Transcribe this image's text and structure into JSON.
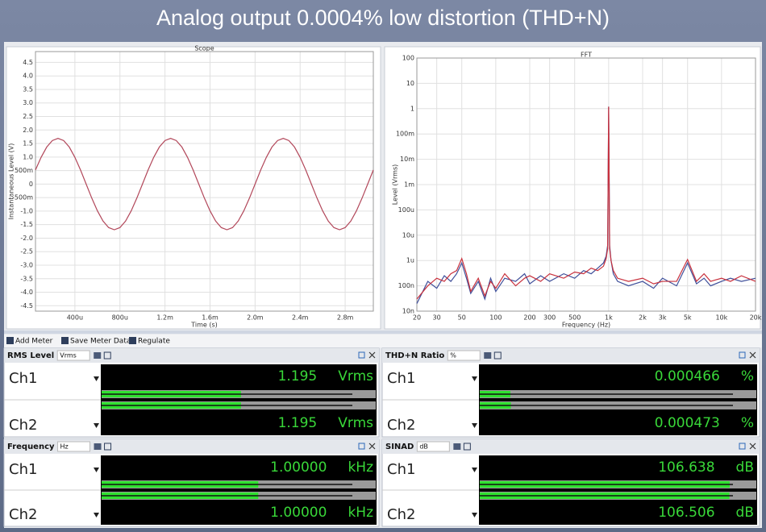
{
  "header": {
    "title": "Analog output 0.0004% low distortion (THD+N)"
  },
  "chart_data": [
    {
      "type": "line",
      "title": "Scope",
      "x_label": "Time (s)",
      "y_label": "Instantaneous Level (V)",
      "x": [
        5e-05,
        0.0001,
        0.00015,
        0.0002,
        0.00025,
        0.0003,
        0.00035,
        0.0004,
        0.00045,
        0.0005,
        0.00055,
        0.0006,
        0.00065,
        0.0007,
        0.00075,
        0.0008,
        0.00085,
        0.0009,
        0.00095,
        0.001,
        0.00105,
        0.0011,
        0.00115,
        0.0012,
        0.00125,
        0.0013,
        0.00135,
        0.0014,
        0.00145,
        0.0015,
        0.00155,
        0.0016,
        0.00165,
        0.0017,
        0.00175,
        0.0018,
        0.00185,
        0.0019,
        0.00195,
        0.002,
        0.00205,
        0.0021,
        0.00215,
        0.0022,
        0.00225,
        0.0023,
        0.00235,
        0.0024,
        0.00245,
        0.0025,
        0.00255,
        0.0026,
        0.00265,
        0.0027,
        0.00275,
        0.0028,
        0.00285,
        0.0029,
        0.00295,
        0.003,
        0.00305
      ],
      "series": [
        {
          "color": "#b2475a",
          "values": [
            0.52,
            0.99,
            1.37,
            1.61,
            1.69,
            1.61,
            1.37,
            0.99,
            0.52,
            0,
            -0.52,
            -0.99,
            -1.37,
            -1.61,
            -1.69,
            -1.61,
            -1.37,
            -0.99,
            -0.52,
            0,
            0.52,
            0.99,
            1.37,
            1.61,
            1.69,
            1.61,
            1.37,
            0.99,
            0.52,
            0,
            -0.52,
            -0.99,
            -1.37,
            -1.61,
            -1.69,
            -1.61,
            -1.37,
            -0.99,
            -0.52,
            0,
            0.52,
            0.99,
            1.37,
            1.61,
            1.69,
            1.61,
            1.37,
            0.99,
            0.52,
            0,
            -0.52,
            -0.99,
            -1.37,
            -1.61,
            -1.69,
            -1.61,
            -1.37,
            -0.99,
            -0.52,
            0,
            0.52
          ]
        }
      ],
      "xlim": [
        5e-05,
        0.00305
      ],
      "xticks": [
        {
          "value": 0.0004,
          "label": "400u"
        },
        {
          "value": 0.0008,
          "label": "800u"
        },
        {
          "value": 0.0012,
          "label": "1.2m"
        },
        {
          "value": 0.0016,
          "label": "1.6m"
        },
        {
          "value": 0.002,
          "label": "2.0m"
        },
        {
          "value": 0.0024,
          "label": "2.4m"
        },
        {
          "value": 0.0028,
          "label": "2.8m"
        }
      ],
      "ylim": [
        -4.7,
        4.9
      ],
      "yticks": [
        4.5,
        {
          "value": 4,
          "label": "4.0"
        },
        3.5,
        {
          "value": 3,
          "label": "3.0"
        },
        2.5,
        {
          "value": 2,
          "label": "2.0"
        },
        1.5,
        {
          "value": 1,
          "label": "1.0"
        },
        {
          "value": 0.5,
          "label": "500m"
        },
        0,
        {
          "value": -0.5,
          "label": "-500m"
        },
        {
          "value": -1,
          "label": "-1.0"
        },
        -1.5,
        {
          "value": -2,
          "label": "-2.0"
        },
        -2.5,
        {
          "value": -3,
          "label": "-3.0"
        },
        -3.5,
        {
          "value": -4,
          "label": "-4.0"
        },
        -4.5
      ],
      "grid": true
    },
    {
      "type": "line",
      "title": "FFT",
      "x_label": "Frequency (Hz)",
      "y_label": "Level (Vrms)",
      "log_x": true,
      "log_y": true,
      "x": [
        20,
        25,
        30,
        35,
        40,
        45,
        50,
        55,
        60,
        70,
        80,
        90,
        100,
        120,
        150,
        180,
        200,
        250,
        300,
        400,
        500,
        600,
        700,
        800,
        900,
        950,
        980,
        1000,
        1020,
        1050,
        1100,
        1200,
        1500,
        2000,
        2500,
        3000,
        4000,
        5000,
        6000,
        7000,
        8000,
        10000,
        12000,
        15000,
        20000
      ],
      "series": [
        {
          "color": "#3f4f9a",
          "values": [
            2e-08,
            1.5e-07,
            8e-08,
            2.5e-07,
            1.5e-07,
            3e-07,
            8e-07,
            2e-07,
            5e-08,
            1.5e-07,
            3e-08,
            2e-07,
            6e-08,
            2e-07,
            1.5e-07,
            3e-07,
            1.2e-07,
            2.5e-07,
            1.5e-07,
            3e-07,
            2e-07,
            4e-07,
            3e-07,
            5e-07,
            8e-07,
            1.5e-06,
            4e-06,
            1.19,
            4e-06,
            1e-06,
            3e-07,
            1.5e-07,
            1e-07,
            1.5e-07,
            8e-08,
            2e-07,
            1e-07,
            8e-07,
            1.2e-07,
            2e-07,
            1e-07,
            1.5e-07,
            2e-07,
            1.5e-07,
            2e-07
          ]
        },
        {
          "color": "#c8303c",
          "values": [
            3e-08,
            1e-07,
            2e-07,
            1.5e-07,
            3e-07,
            4e-07,
            1.2e-06,
            3e-07,
            6e-08,
            2e-07,
            4e-08,
            1.5e-07,
            8e-08,
            3e-07,
            1e-07,
            2e-07,
            2.5e-07,
            1.5e-07,
            3e-07,
            2e-07,
            3.5e-07,
            3e-07,
            5e-07,
            4e-07,
            6e-07,
            1.2e-06,
            3e-06,
            1.19,
            3e-06,
            1e-06,
            4e-07,
            2e-07,
            1.5e-07,
            2e-07,
            1.2e-07,
            1.5e-07,
            1.5e-07,
            1.1e-06,
            1.5e-07,
            3e-07,
            1.5e-07,
            2e-07,
            1.5e-07,
            2.5e-07,
            1.5e-07
          ]
        }
      ],
      "xlim": [
        20,
        20000
      ],
      "xticks": [
        20,
        30,
        50,
        100,
        200,
        300,
        500,
        {
          "value": 1000,
          "label": "1k"
        },
        {
          "value": 2000,
          "label": "2k"
        },
        {
          "value": 3000,
          "label": "3k"
        },
        {
          "value": 5000,
          "label": "5k"
        },
        {
          "value": 10000,
          "label": "10k"
        },
        {
          "value": 20000,
          "label": "20k"
        }
      ],
      "ylim": [
        1e-08,
        100
      ],
      "yticks": [
        100,
        10,
        1,
        {
          "value": 0.1,
          "label": "100m"
        },
        {
          "value": 0.01,
          "label": "10m"
        },
        {
          "value": 0.001,
          "label": "1m"
        },
        {
          "value": 0.0001,
          "label": "100u"
        },
        {
          "value": 1e-05,
          "label": "10u"
        },
        {
          "value": 1e-06,
          "label": "1u"
        },
        {
          "value": 1e-07,
          "label": "100n"
        },
        {
          "value": 1e-08,
          "label": "10n"
        }
      ],
      "grid": true
    }
  ],
  "toolbar": [
    "Add Meter",
    "Save Meter Data",
    "Regulate"
  ],
  "meters": [
    {
      "title": "RMS Level",
      "unit_option": "Vrms",
      "unit": "Vrms",
      "channels": [
        "Ch1",
        "Ch2"
      ],
      "values": [
        1.195,
        1.195
      ],
      "range": [
        0,
        2.35
      ]
    },
    {
      "title": "THD+N Ratio",
      "unit_option": "%",
      "unit": "%",
      "channels": [
        "Ch1",
        "Ch2"
      ],
      "values": [
        0.000466,
        0.000473
      ],
      "range": [
        0,
        0.0042
      ]
    },
    {
      "title": "Frequency",
      "unit_option": "Hz",
      "unit": "kHz",
      "channels": [
        "Ch1",
        "Ch2"
      ],
      "values": [
        1,
        1
      ],
      "value_labels": [
        "1.00000",
        "1.00000"
      ],
      "range": [
        0,
        1.75
      ]
    },
    {
      "title": "SINAD",
      "unit_option": "dB",
      "unit": "dB",
      "channels": [
        "Ch1",
        "Ch2"
      ],
      "values": [
        106.638,
        106.506
      ],
      "range": [
        0,
        118
      ]
    }
  ]
}
